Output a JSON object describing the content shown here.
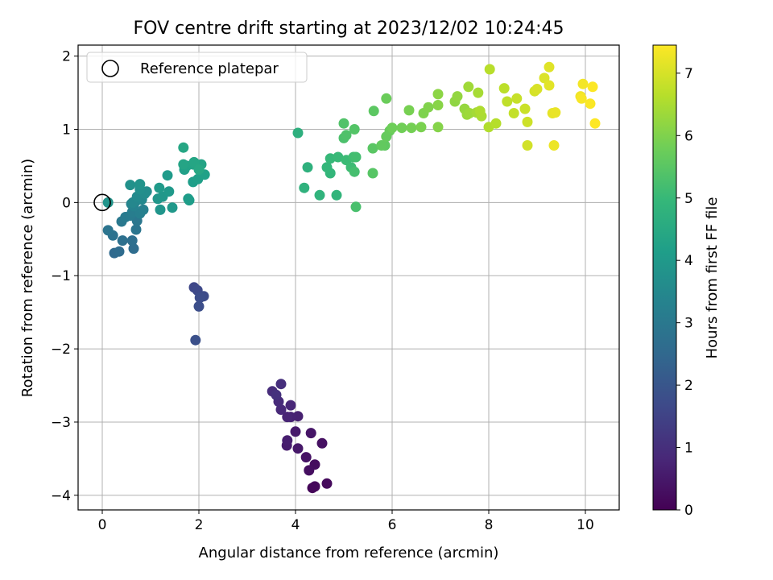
{
  "chart_data": {
    "type": "scatter",
    "title": "FOV centre drift starting at 2023/12/02 10:24:45",
    "xlabel": "Angular distance from reference (arcmin)",
    "ylabel": "Rotation from reference (arcmin)",
    "xlim": [
      -0.5,
      10.7
    ],
    "ylim": [
      -4.2,
      2.15
    ],
    "xticks": [
      0,
      2,
      4,
      6,
      8,
      10
    ],
    "yticks": [
      -4,
      -3,
      -2,
      -1,
      0,
      1,
      2
    ],
    "xticklabels": [
      "0",
      "2",
      "4",
      "6",
      "8",
      "10"
    ],
    "yticklabels": [
      "−4",
      "−3",
      "−2",
      "−1",
      "0",
      "1",
      "2"
    ],
    "grid": true,
    "legend": {
      "placement": "top-left",
      "entries": [
        "Reference platepar"
      ]
    },
    "reference_point": {
      "x": 0.0,
      "y": 0.0
    },
    "colorbar": {
      "label": "Hours from first FF file",
      "colormap": "viridis",
      "range": [
        0,
        7.45
      ],
      "ticks": [
        0,
        1,
        2,
        3,
        4,
        5,
        6,
        7
      ],
      "ticklabels": [
        "0",
        "1",
        "2",
        "3",
        "4",
        "5",
        "6",
        "7"
      ]
    },
    "colormap_stops": [
      "#440154",
      "#482878",
      "#3e4989",
      "#31688e",
      "#26828e",
      "#1f9e89",
      "#35b779",
      "#6ece58",
      "#b5de2b",
      "#fde725"
    ],
    "points": [
      [
        4.35,
        -3.9,
        0.1
      ],
      [
        4.4,
        -3.88,
        0.14
      ],
      [
        4.65,
        -3.84,
        0.19
      ],
      [
        4.4,
        -3.58,
        0.24
      ],
      [
        4.28,
        -3.66,
        0.28
      ],
      [
        4.55,
        -3.29,
        0.33
      ],
      [
        4.22,
        -3.48,
        0.38
      ],
      [
        4.32,
        -3.15,
        0.43
      ],
      [
        4.05,
        -3.36,
        0.48
      ],
      [
        4.0,
        -3.13,
        0.53
      ],
      [
        3.82,
        -3.32,
        0.57
      ],
      [
        3.83,
        -3.25,
        0.62
      ],
      [
        4.05,
        -2.92,
        0.67
      ],
      [
        3.9,
        -2.93,
        0.71
      ],
      [
        3.83,
        -2.93,
        0.76
      ],
      [
        3.9,
        -2.77,
        0.81
      ],
      [
        3.7,
        -2.83,
        0.86
      ],
      [
        3.65,
        -2.72,
        0.91
      ],
      [
        3.52,
        -2.58,
        0.95
      ],
      [
        3.7,
        -2.48,
        1.0
      ],
      [
        3.6,
        -2.63,
        1.05
      ],
      [
        1.9,
        -1.16,
        1.6
      ],
      [
        1.97,
        -1.2,
        1.65
      ],
      [
        2.1,
        -1.28,
        1.7
      ],
      [
        2.02,
        -1.3,
        1.75
      ],
      [
        2.0,
        -1.42,
        1.8
      ],
      [
        1.93,
        -1.88,
        1.85
      ],
      [
        0.25,
        -0.69,
        2.55
      ],
      [
        0.35,
        -0.67,
        2.6
      ],
      [
        0.65,
        -0.63,
        2.65
      ],
      [
        0.62,
        -0.52,
        2.7
      ],
      [
        0.42,
        -0.52,
        2.75
      ],
      [
        0.22,
        -0.45,
        2.8
      ],
      [
        0.12,
        -0.38,
        2.85
      ],
      [
        0.7,
        -0.37,
        2.9
      ],
      [
        0.72,
        -0.25,
        2.95
      ],
      [
        0.4,
        -0.26,
        3.0
      ],
      [
        0.48,
        -0.2,
        3.05
      ],
      [
        0.58,
        -0.18,
        3.1
      ],
      [
        0.62,
        -0.13,
        3.15
      ],
      [
        0.78,
        -0.15,
        3.2
      ],
      [
        0.85,
        -0.1,
        3.25
      ],
      [
        0.65,
        -0.05,
        3.3
      ],
      [
        0.6,
        -0.02,
        3.35
      ],
      [
        0.7,
        0.02,
        3.4
      ],
      [
        0.63,
        0.0,
        3.45
      ],
      [
        0.82,
        0.04,
        3.5
      ],
      [
        0.72,
        0.08,
        3.55
      ],
      [
        0.88,
        0.12,
        3.6
      ],
      [
        0.92,
        0.15,
        3.65
      ],
      [
        0.78,
        0.18,
        3.7
      ],
      [
        0.58,
        0.24,
        3.75
      ],
      [
        0.78,
        0.25,
        3.8
      ],
      [
        0.12,
        0.0,
        3.83
      ],
      [
        1.2,
        -0.1,
        3.87
      ],
      [
        1.15,
        0.05,
        3.9
      ],
      [
        1.25,
        0.08,
        3.93
      ],
      [
        1.45,
        -0.07,
        3.96
      ],
      [
        1.38,
        0.15,
        3.99
      ],
      [
        1.18,
        0.2,
        4.02
      ],
      [
        1.35,
        0.37,
        4.05
      ],
      [
        1.78,
        0.05,
        4.08
      ],
      [
        1.8,
        0.03,
        4.11
      ],
      [
        1.88,
        0.28,
        4.14
      ],
      [
        1.98,
        0.32,
        4.17
      ],
      [
        1.7,
        0.45,
        4.2
      ],
      [
        2.12,
        0.38,
        4.23
      ],
      [
        1.75,
        0.5,
        4.26
      ],
      [
        1.88,
        0.52,
        4.29
      ],
      [
        2.05,
        0.52,
        4.32
      ],
      [
        1.68,
        0.52,
        4.35
      ],
      [
        1.9,
        0.55,
        4.38
      ],
      [
        1.68,
        0.75,
        4.41
      ],
      [
        2.0,
        0.45,
        4.44
      ],
      [
        4.05,
        0.95,
        4.7
      ],
      [
        4.25,
        0.48,
        4.74
      ],
      [
        4.18,
        0.2,
        4.78
      ],
      [
        4.5,
        0.1,
        4.82
      ],
      [
        4.85,
        0.1,
        4.86
      ],
      [
        4.72,
        0.4,
        4.9
      ],
      [
        4.65,
        0.48,
        4.94
      ],
      [
        4.72,
        0.6,
        4.98
      ],
      [
        4.88,
        0.62,
        5.02
      ],
      [
        5.05,
        0.58,
        5.06
      ],
      [
        5.15,
        0.48,
        5.1
      ],
      [
        5.2,
        0.62,
        5.14
      ],
      [
        5.25,
        0.62,
        5.18
      ],
      [
        5.22,
        0.42,
        5.22
      ],
      [
        5.25,
        -0.06,
        5.26
      ],
      [
        5.0,
        0.88,
        5.3
      ],
      [
        5.05,
        0.92,
        5.34
      ],
      [
        5.0,
        1.08,
        5.38
      ],
      [
        5.22,
        1.0,
        5.42
      ],
      [
        5.6,
        0.4,
        5.46
      ],
      [
        5.6,
        0.74,
        5.5
      ],
      [
        5.62,
        1.25,
        5.54
      ],
      [
        5.85,
        0.78,
        5.58
      ],
      [
        5.78,
        0.78,
        5.62
      ],
      [
        5.88,
        0.9,
        5.66
      ],
      [
        5.95,
        0.98,
        5.7
      ],
      [
        5.88,
        1.42,
        5.74
      ],
      [
        6.0,
        1.02,
        5.78
      ],
      [
        6.2,
        1.02,
        5.82
      ],
      [
        6.4,
        1.02,
        5.86
      ],
      [
        6.35,
        1.26,
        5.9
      ],
      [
        6.6,
        1.03,
        5.94
      ],
      [
        6.65,
        1.22,
        5.98
      ],
      [
        6.75,
        1.3,
        6.02
      ],
      [
        6.95,
        1.03,
        6.06
      ],
      [
        6.95,
        1.33,
        6.1
      ],
      [
        6.95,
        1.48,
        6.14
      ],
      [
        7.3,
        1.38,
        6.18
      ],
      [
        7.35,
        1.45,
        6.22
      ],
      [
        7.5,
        1.28,
        6.26
      ],
      [
        7.55,
        1.2,
        6.3
      ],
      [
        7.6,
        1.22,
        6.34
      ],
      [
        7.58,
        1.58,
        6.38
      ],
      [
        7.75,
        1.23,
        6.42
      ],
      [
        7.78,
        1.5,
        6.46
      ],
      [
        7.85,
        1.18,
        6.5
      ],
      [
        7.82,
        1.25,
        6.54
      ],
      [
        8.0,
        1.03,
        6.58
      ],
      [
        8.15,
        1.08,
        6.62
      ],
      [
        8.02,
        1.82,
        6.66
      ],
      [
        8.32,
        1.56,
        6.7
      ],
      [
        8.38,
        1.38,
        6.74
      ],
      [
        8.52,
        1.22,
        6.78
      ],
      [
        8.58,
        1.42,
        6.82
      ],
      [
        8.75,
        1.28,
        6.86
      ],
      [
        8.8,
        1.1,
        6.9
      ],
      [
        8.8,
        0.78,
        6.94
      ],
      [
        8.95,
        1.52,
        6.98
      ],
      [
        9.0,
        1.55,
        7.02
      ],
      [
        9.15,
        1.7,
        7.06
      ],
      [
        9.25,
        1.85,
        7.1
      ],
      [
        9.25,
        1.6,
        7.14
      ],
      [
        9.32,
        1.22,
        7.18
      ],
      [
        9.38,
        1.23,
        7.22
      ],
      [
        9.35,
        0.78,
        7.26
      ],
      [
        9.9,
        1.45,
        7.3
      ],
      [
        9.95,
        1.62,
        7.34
      ],
      [
        9.92,
        1.42,
        7.38
      ],
      [
        10.1,
        1.35,
        7.41
      ],
      [
        10.15,
        1.58,
        7.44
      ],
      [
        10.2,
        1.08,
        7.45
      ]
    ]
  }
}
